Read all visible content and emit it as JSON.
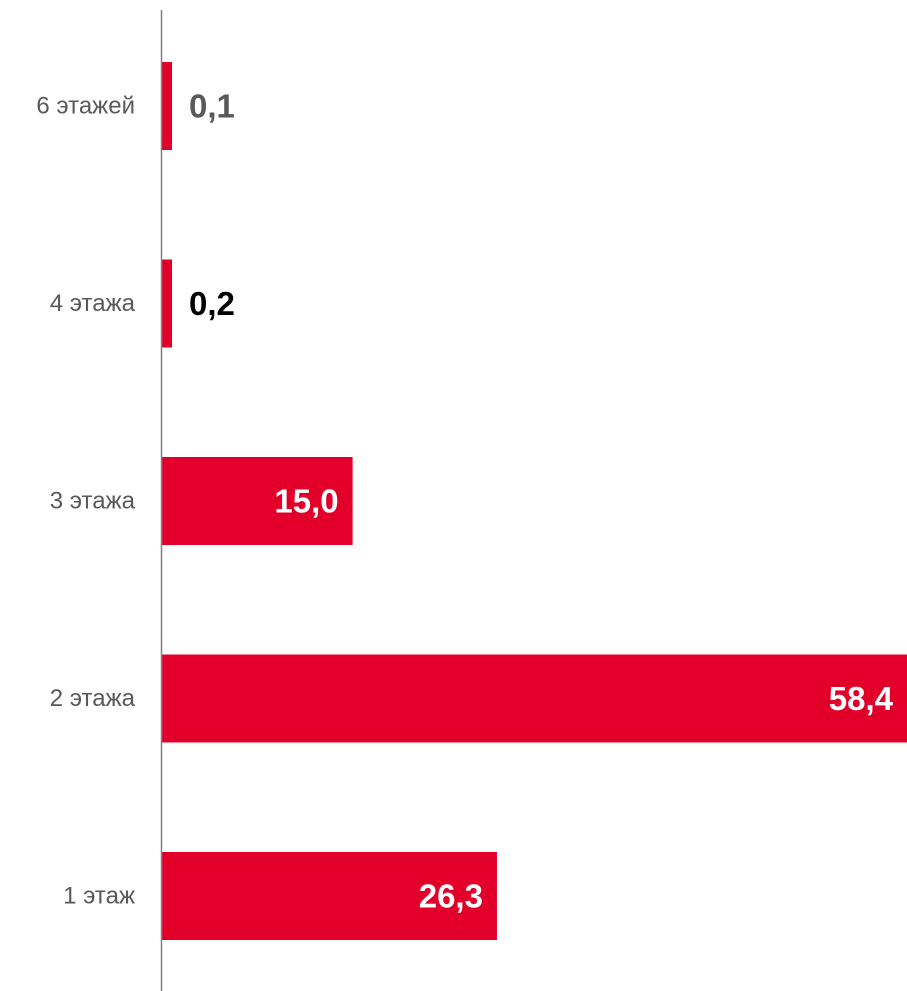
{
  "chart_data": {
    "type": "bar",
    "orientation": "horizontal",
    "categories": [
      "6 этажей",
      "4 этажа",
      "3 этажа",
      "2 этажа",
      "1 этаж"
    ],
    "values": [
      0.1,
      0.2,
      15.0,
      58.4,
      26.3
    ],
    "value_labels": [
      "0,1",
      "0,2",
      "15,0",
      "58,4",
      "26,3"
    ],
    "title": "",
    "xlabel": "",
    "ylabel": "",
    "xlim": [
      0,
      58.4
    ],
    "grid": false,
    "legend": "none",
    "colors": {
      "bar": "#E2002A",
      "axis": "#808080",
      "category_text": "#595959",
      "label_inside": "#FFFFFF",
      "label_outside": [
        "#595959",
        "#000000"
      ]
    }
  }
}
